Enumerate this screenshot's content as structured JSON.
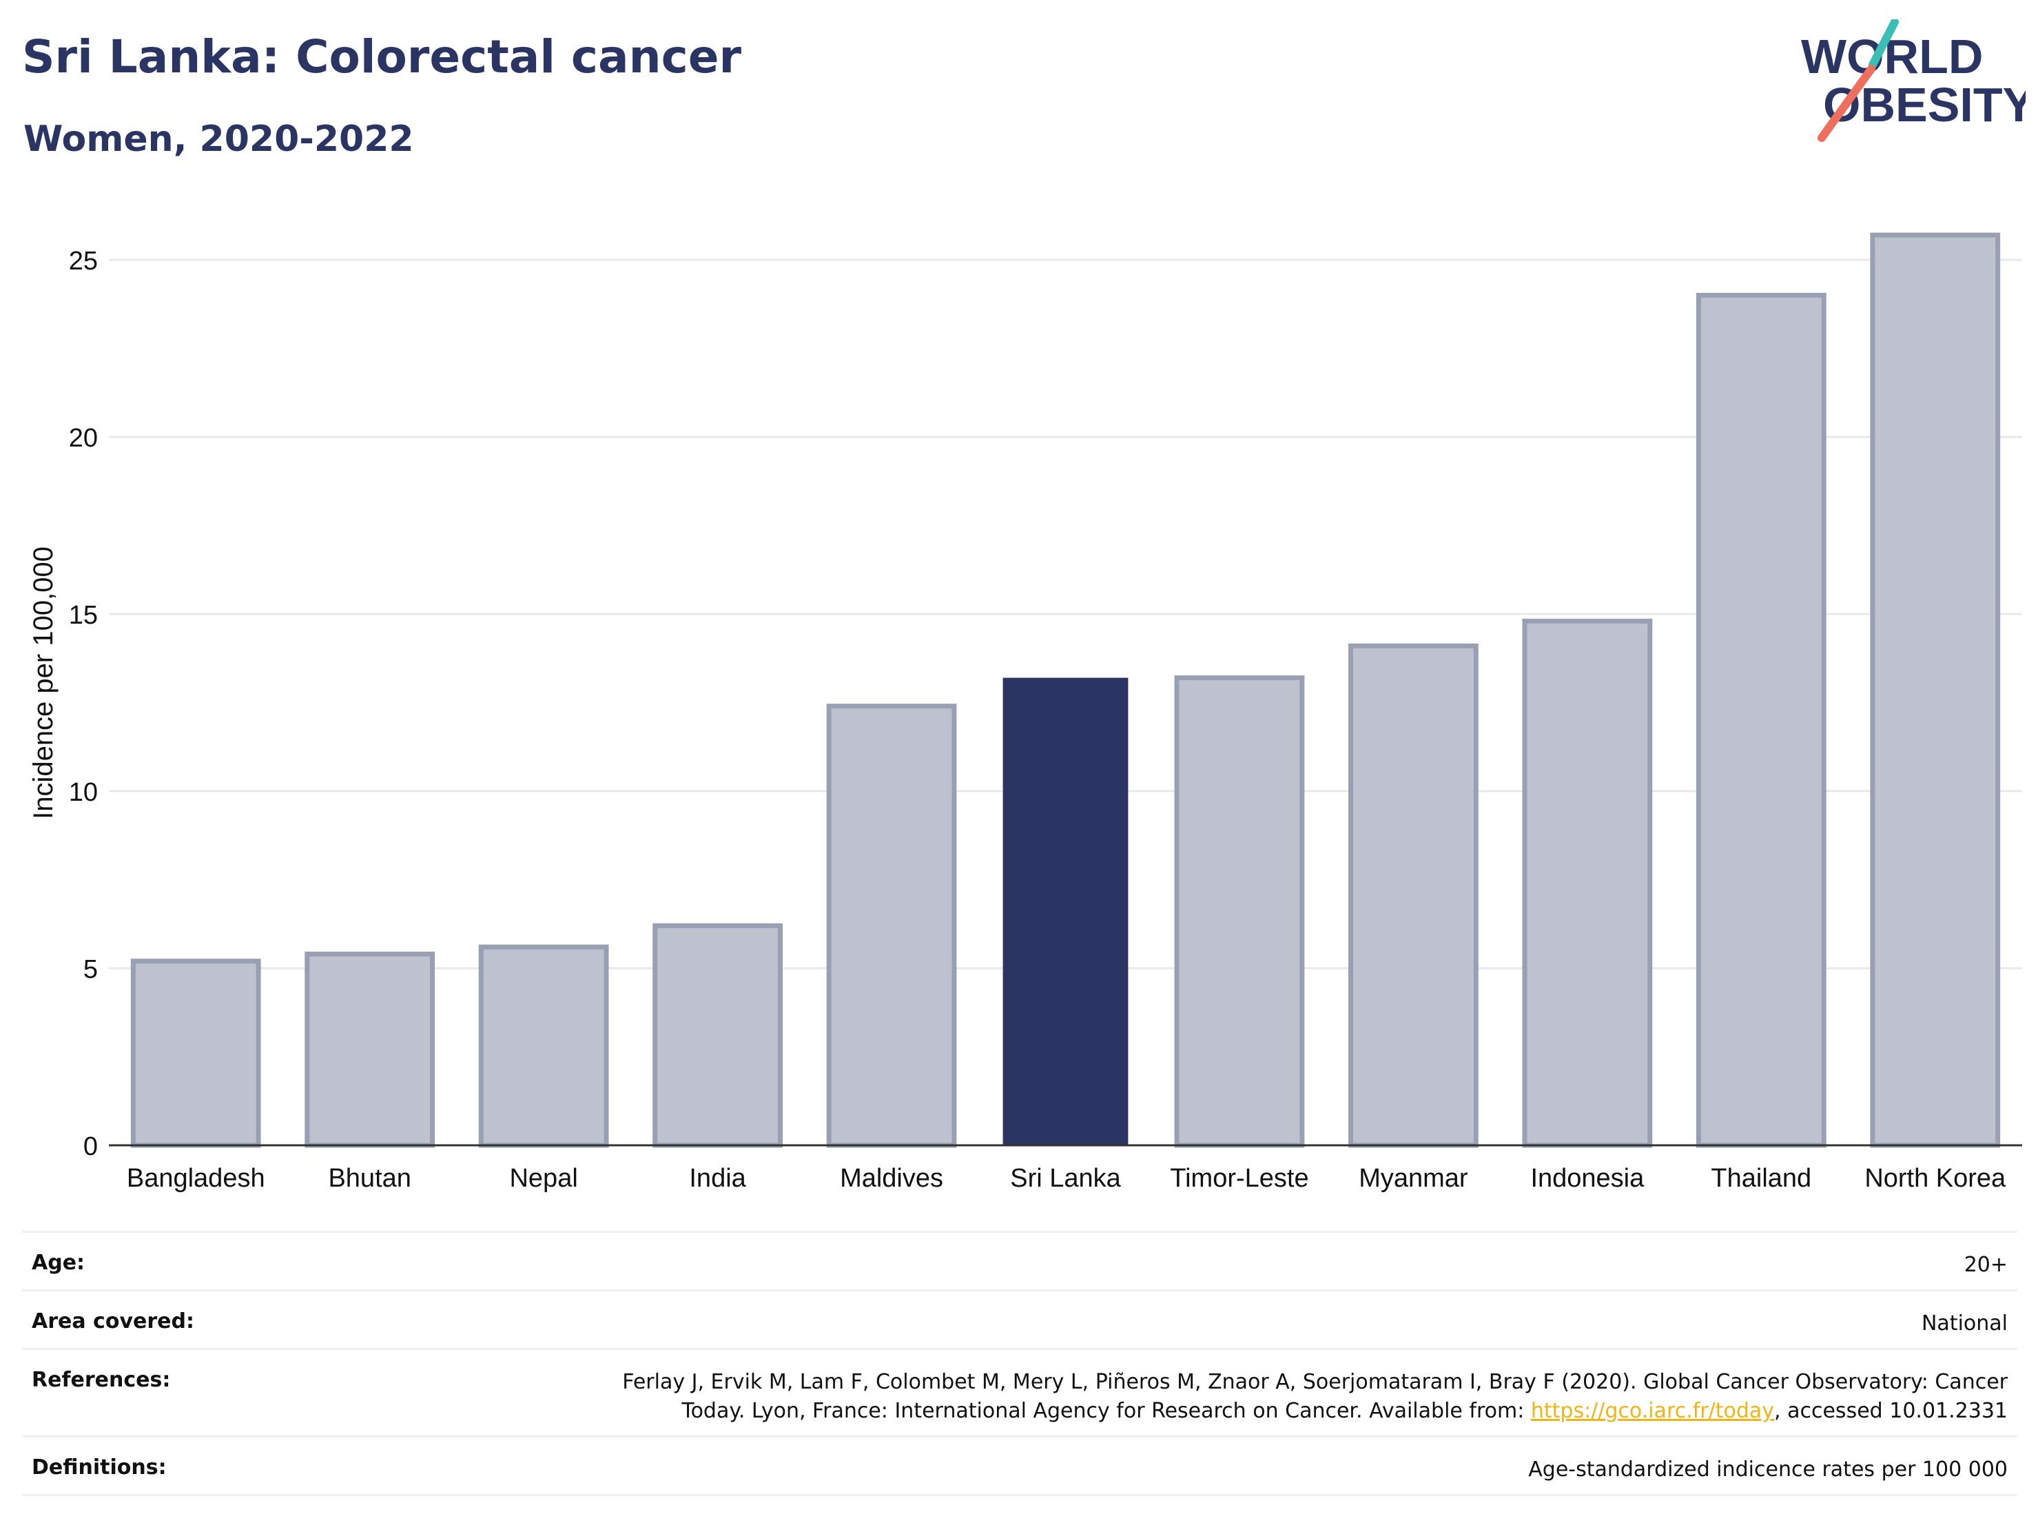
{
  "header": {
    "title": "Sri Lanka: Colorectal cancer",
    "subtitle": "Women, 2020-2022"
  },
  "logo": {
    "line1": "WORLD",
    "line2": "OBESITY"
  },
  "colors": {
    "highlight": "#2b3563",
    "bar_fill": "#bec2cf",
    "bar_stroke": "#9aa0b3",
    "grid": "#e8e9ee",
    "logo_teal": "#3bbfb5",
    "logo_coral": "#ef6f5e",
    "link": "#f1b416"
  },
  "chart_data": {
    "type": "bar",
    "categories": [
      "Bangladesh",
      "Bhutan",
      "Nepal",
      "India",
      "Maldives",
      "Sri Lanka",
      "Timor-Leste",
      "Myanmar",
      "Indonesia",
      "Thailand",
      "North Korea"
    ],
    "values": [
      5.2,
      5.4,
      5.6,
      6.2,
      12.4,
      13.2,
      13.2,
      14.1,
      14.8,
      24.0,
      25.7
    ],
    "highlight": "Sri Lanka",
    "ylabel": "Incidence per 100,000",
    "ylim": [
      0,
      26.5
    ],
    "yticks": [
      0,
      5,
      10,
      15,
      20,
      25
    ],
    "grid": true
  },
  "info": {
    "age_label": "Age:",
    "age_value": "20+",
    "area_label": "Area covered:",
    "area_value": "National",
    "references_label": "References:",
    "references_line1": "Ferlay J, Ervik M, Lam F, Colombet M, Mery L, Piñeros M, Znaor A, Soerjomataram I, Bray F (2020). Global Cancer Observatory: Cancer",
    "references_line2_pre": "Today. Lyon, France: International Agency for Research on Cancer. Available from: ",
    "references_link": "https://gco.iarc.fr/today",
    "references_line2_post": ", accessed 10.01.2331",
    "definitions_label": "Definitions:",
    "definitions_value": "Age-standardized indicence rates per 100 000"
  }
}
